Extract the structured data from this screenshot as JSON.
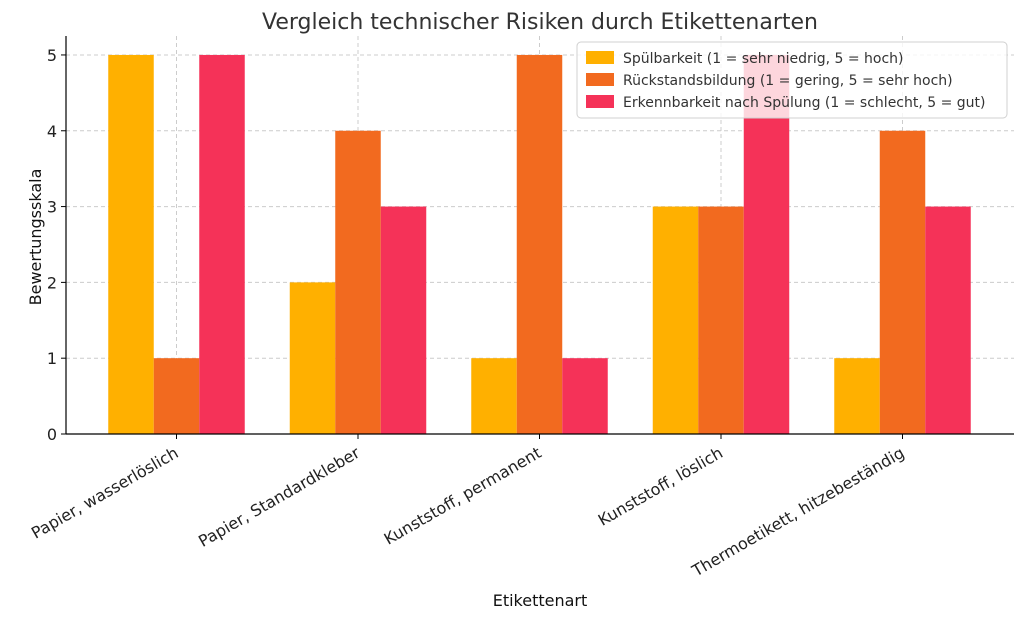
{
  "chart_data": {
    "type": "bar",
    "title": "Vergleich technischer Risiken durch Etikettenarten",
    "xlabel": "Etikettenart",
    "ylabel": "Bewertungsskala",
    "categories": [
      "Papier, wasserlöslich",
      "Papier, Standardkleber",
      "Kunststoff, permanent",
      "Kunststoff, löslich",
      "Thermoetikett, hitzebeständig"
    ],
    "series": [
      {
        "name": "Spülbarkeit (1 = sehr niedrig, 5 = hoch)",
        "color": "#FFB000",
        "values": [
          5,
          2,
          1,
          3,
          1
        ]
      },
      {
        "name": "Rückstandsbildung (1 = gering, 5 = sehr hoch)",
        "color": "#F26A1F",
        "values": [
          1,
          4,
          5,
          3,
          4
        ]
      },
      {
        "name": "Erkennbarkeit nach Spülung (1 = schlecht, 5 = gut)",
        "color": "#F53258",
        "values": [
          5,
          3,
          1,
          5,
          3
        ]
      }
    ],
    "ylim": [
      0,
      5.25
    ],
    "yticks": [
      0,
      1,
      2,
      3,
      4,
      5
    ],
    "grid": true,
    "legend_position": "top-right"
  }
}
